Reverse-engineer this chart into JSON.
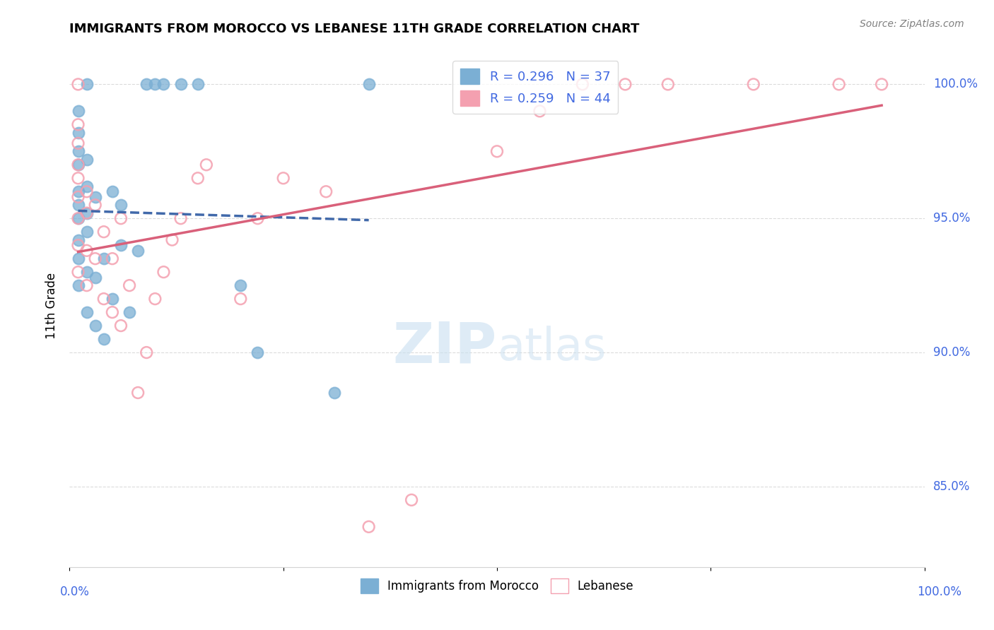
{
  "title": "IMMIGRANTS FROM MOROCCO VS LEBANESE 11TH GRADE CORRELATION CHART",
  "source": "Source: ZipAtlas.com",
  "ylabel": "11th Grade",
  "yticks": [
    100.0,
    95.0,
    90.0,
    85.0
  ],
  "ytick_labels": [
    "100.0%",
    "95.0%",
    "90.0%",
    "85.0%"
  ],
  "xlim": [
    0.0,
    1.0
  ],
  "ylim": [
    82.0,
    101.5
  ],
  "r_morocco": 0.296,
  "n_morocco": 37,
  "r_lebanese": 0.259,
  "n_lebanese": 44,
  "legend_label_1": "Immigrants from Morocco",
  "legend_label_2": "Lebanese",
  "color_morocco": "#7BAFD4",
  "color_lebanese": "#F4A0B0",
  "trendline_color_morocco": "#4169AA",
  "trendline_color_lebanese": "#D9607A",
  "watermark_zip": "ZIP",
  "watermark_atlas": "atlas",
  "morocco_x": [
    0.01,
    0.01,
    0.01,
    0.01,
    0.01,
    0.01,
    0.01,
    0.01,
    0.01,
    0.01,
    0.02,
    0.02,
    0.02,
    0.02,
    0.02,
    0.02,
    0.02,
    0.03,
    0.03,
    0.03,
    0.04,
    0.04,
    0.05,
    0.05,
    0.06,
    0.06,
    0.07,
    0.08,
    0.09,
    0.1,
    0.11,
    0.13,
    0.15,
    0.2,
    0.22,
    0.31,
    0.35
  ],
  "morocco_y": [
    92.5,
    93.5,
    94.2,
    95.0,
    95.5,
    96.0,
    97.0,
    97.5,
    98.2,
    99.0,
    91.5,
    93.0,
    94.5,
    95.2,
    96.2,
    97.2,
    100.0,
    91.0,
    92.8,
    95.8,
    90.5,
    93.5,
    92.0,
    96.0,
    94.0,
    95.5,
    91.5,
    93.8,
    100.0,
    100.0,
    100.0,
    100.0,
    100.0,
    92.5,
    90.0,
    88.5,
    100.0
  ],
  "lebanese_x": [
    0.01,
    0.01,
    0.01,
    0.01,
    0.01,
    0.01,
    0.01,
    0.01,
    0.01,
    0.02,
    0.02,
    0.02,
    0.02,
    0.03,
    0.03,
    0.04,
    0.04,
    0.05,
    0.05,
    0.06,
    0.06,
    0.07,
    0.08,
    0.09,
    0.1,
    0.11,
    0.12,
    0.13,
    0.15,
    0.16,
    0.2,
    0.22,
    0.25,
    0.3,
    0.35,
    0.4,
    0.5,
    0.55,
    0.6,
    0.65,
    0.7,
    0.8,
    0.9,
    0.95
  ],
  "lebanese_y": [
    93.0,
    94.0,
    95.0,
    95.8,
    96.5,
    97.0,
    97.8,
    98.5,
    100.0,
    92.5,
    93.8,
    95.2,
    96.0,
    93.5,
    95.5,
    92.0,
    94.5,
    91.5,
    93.5,
    91.0,
    95.0,
    92.5,
    88.5,
    90.0,
    92.0,
    93.0,
    94.2,
    95.0,
    96.5,
    97.0,
    92.0,
    95.0,
    96.5,
    96.0,
    83.5,
    84.5,
    97.5,
    99.0,
    100.0,
    100.0,
    100.0,
    100.0,
    100.0,
    100.0
  ]
}
